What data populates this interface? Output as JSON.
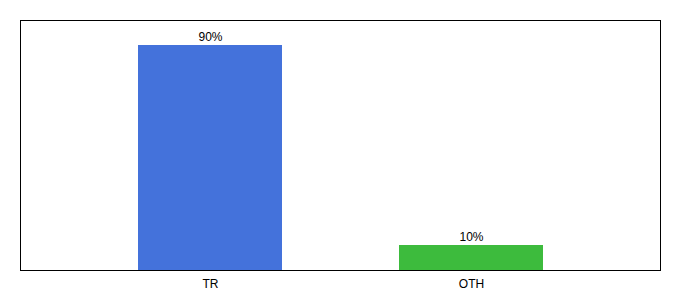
{
  "chart_data": {
    "type": "bar",
    "categories": [
      "TR",
      "OTH"
    ],
    "values": [
      90,
      10
    ],
    "value_labels": [
      "90%",
      "10%"
    ],
    "colors": [
      "#4472db",
      "#3dbb3d"
    ],
    "ylim": [
      0,
      100
    ],
    "yticks": [],
    "grid": false,
    "data_labels": true,
    "tick_labels": "x"
  }
}
